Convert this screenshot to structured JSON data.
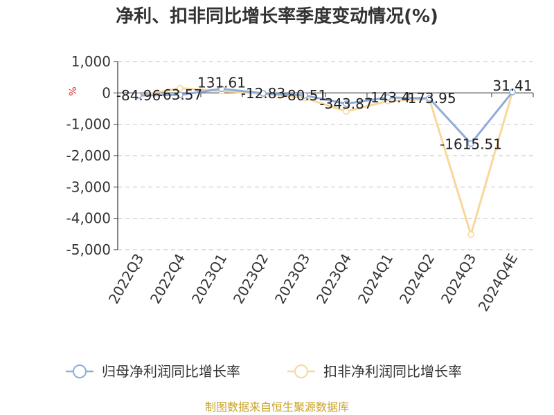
{
  "title": "净利、扣非同比增长率季度变动情况(%)",
  "source": "制图数据来自恒生聚源数据库",
  "colors": {
    "series1": "#8facd8",
    "series2": "#f8d79a",
    "axis": "#333333",
    "grid": "#cccccc",
    "unit": "#e03030",
    "source": "#c9a227"
  },
  "chart_data": {
    "type": "line",
    "title": "净利、扣非同比增长率季度变动情况(%)",
    "xlabel": "",
    "ylabel": "%",
    "ylim": [
      -5000,
      1000
    ],
    "yticks": [
      1000,
      0,
      -1000,
      -2000,
      -3000,
      -4000,
      -5000
    ],
    "ytick_labels": [
      "1,000",
      "0",
      "-1,000",
      "-2,000",
      "-3,000",
      "-4,000",
      "-5,000"
    ],
    "grid": true,
    "legend_position": "bottom",
    "categories": [
      "2022Q3",
      "2022Q4",
      "2023Q1",
      "2023Q2",
      "2023Q3",
      "2023Q4",
      "2024Q1",
      "2024Q2",
      "2024Q3",
      "2024Q4E"
    ],
    "series": [
      {
        "name": "归母净利润同比增长率",
        "values": [
          -84.96,
          -63.57,
          131.61,
          -12.83,
          -80.51,
          -343.87,
          -143.4,
          -173.95,
          -1615.51,
          31.41
        ],
        "labels": [
          "-84.96",
          "-63.57",
          "131.61",
          "-12.83",
          "-80.51",
          "-343.87",
          "-143.4",
          "-173.95",
          "-1615.51",
          "31.41"
        ]
      },
      {
        "name": "扣非净利润同比增长率",
        "values": [
          -90,
          150,
          60,
          -30,
          -160,
          -590,
          -260,
          -190,
          -4520,
          30
        ]
      }
    ]
  }
}
